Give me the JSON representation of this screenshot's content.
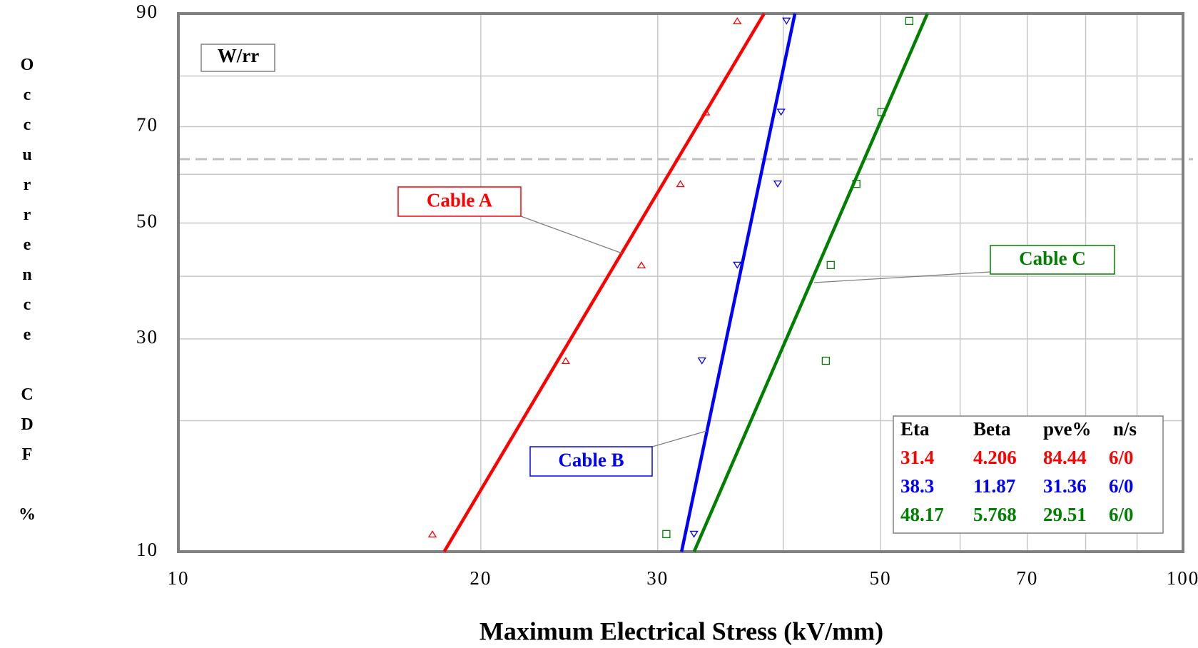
{
  "chart_data": {
    "type": "probability",
    "x_label": "Maximum Electrical Stress (kV/mm)",
    "y_label": "Occurrence CDF %",
    "plot_label": "W/rr",
    "xscale": "log",
    "yscale": "weibull",
    "xlim": [
      10,
      100
    ],
    "xticks": [
      10,
      20,
      30,
      50,
      70,
      100
    ],
    "xminor": [
      40,
      60,
      80,
      90
    ],
    "ylim": [
      10,
      90
    ],
    "yticks": [
      10,
      30,
      50,
      70,
      90
    ],
    "yminor": [
      20,
      40,
      60,
      80
    ],
    "reference_line": 63.2,
    "grid": true,
    "legend_columns": [
      "Eta",
      "Beta",
      "pve%",
      "n/s"
    ],
    "series": [
      {
        "name": "Cable A",
        "color": "#ff0000",
        "marker": "triangle-up",
        "eta": 31.4,
        "beta": 4.206,
        "pve": 84.44,
        "ns": "6/0",
        "x": [
          17.9,
          24.3,
          28.9,
          31.6,
          33.5,
          36.0
        ],
        "values": [
          11,
          27,
          42,
          58,
          73,
          89
        ]
      },
      {
        "name": "Cable B",
        "color": "#0000ff",
        "marker": "triangle-down",
        "eta": 38.3,
        "beta": 11.87,
        "pve": 31.36,
        "ns": "6/0",
        "x": [
          32.6,
          33.2,
          36.0,
          39.5,
          39.8,
          40.3
        ],
        "values": [
          11,
          27,
          42,
          58,
          73,
          89
        ]
      },
      {
        "name": "Cable C",
        "color": "#008000",
        "marker": "square",
        "eta": 48.17,
        "beta": 5.768,
        "pve": 29.51,
        "ns": "6/0",
        "x": [
          30.6,
          44.1,
          44.6,
          47.3,
          50.1,
          53.4
        ],
        "values": [
          11,
          27,
          42,
          58,
          73,
          89
        ]
      }
    ]
  }
}
